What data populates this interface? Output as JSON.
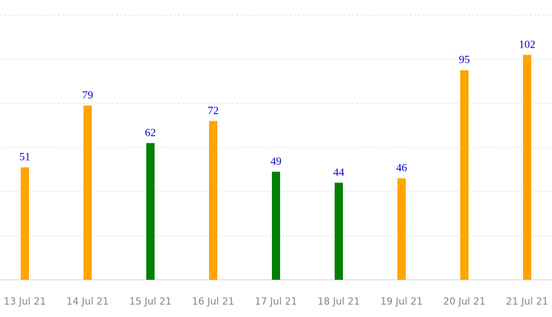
{
  "chart_data": {
    "type": "bar",
    "categories": [
      "13 Jul 21",
      "14 Jul 21",
      "15 Jul 21",
      "16 Jul 21",
      "17 Jul 21",
      "18 Jul 21",
      "19 Jul 21",
      "20 Jul 21",
      "21 Jul 21"
    ],
    "values": [
      51,
      79,
      62,
      72,
      49,
      44,
      46,
      95,
      102
    ],
    "colors": [
      "#ffa500",
      "#ffa500",
      "#008000",
      "#ffa500",
      "#008000",
      "#008000",
      "#ffa500",
      "#ffa500",
      "#ffa500"
    ],
    "label_color": "#0000cc",
    "ylim": [
      0,
      120
    ],
    "yticks": [
      0,
      20,
      40,
      60,
      80,
      100,
      120
    ],
    "grid": true
  }
}
